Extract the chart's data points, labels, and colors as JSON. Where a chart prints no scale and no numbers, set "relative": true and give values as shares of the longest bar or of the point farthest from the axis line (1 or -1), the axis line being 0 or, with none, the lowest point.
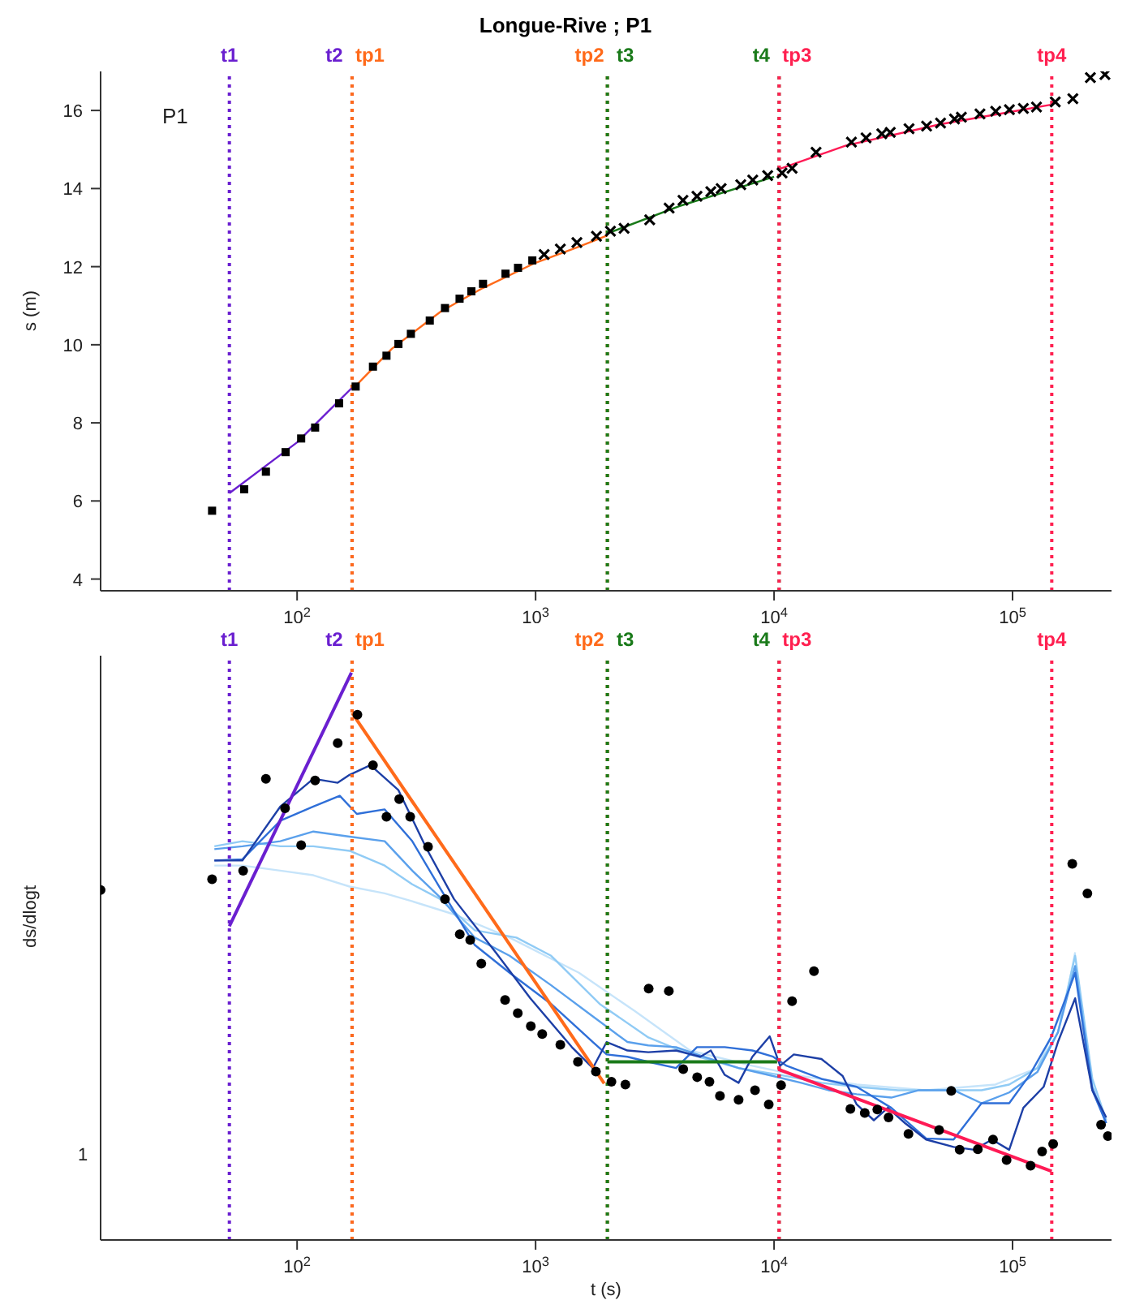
{
  "chart_data": [
    {
      "type": "scatter",
      "title": "Longue-Rive ; P1",
      "ylabel": "s (m)",
      "annotations": [
        "P1"
      ],
      "log": "x",
      "xlim": [
        15,
        260000
      ],
      "ylim": [
        3.7,
        17
      ],
      "xticks": [
        {
          "value": 100,
          "label": "10$^{2}$"
        },
        {
          "value": 1000,
          "label": "10$^{3}$"
        },
        {
          "value": 10000,
          "label": "10$^{4}$"
        },
        {
          "value": 100000,
          "label": "10$^{5}$"
        }
      ],
      "yticks": [
        4,
        6,
        8,
        10,
        12,
        14,
        16
      ],
      "ref_lines": [
        {
          "axis": "x",
          "value": 52,
          "label": "t1",
          "color": "#6a1fd0",
          "line_style": "dotted"
        },
        {
          "axis": "x",
          "value": 170,
          "label": "t2",
          "color": "#6a1fd0",
          "line_style": "dotted"
        },
        {
          "axis": "x",
          "value": 170,
          "label": "tp1",
          "color": "#ff6a1a",
          "line_style": "dotted"
        },
        {
          "axis": "x",
          "value": 2000,
          "label": "tp2",
          "color": "#ff6a1a",
          "line_style": "dotted"
        },
        {
          "axis": "x",
          "value": 2000,
          "label": "t3",
          "color": "#1a7a1a",
          "line_style": "dotted"
        },
        {
          "axis": "x",
          "value": 10500,
          "label": "t4",
          "color": "#1a7a1a",
          "line_style": "dotted"
        },
        {
          "axis": "x",
          "value": 10500,
          "label": "tp3",
          "color": "#ff2050",
          "line_style": "dotted"
        },
        {
          "axis": "x",
          "value": 146000,
          "label": "tp4",
          "color": "#ff2050",
          "line_style": "dotted"
        }
      ],
      "series": [
        {
          "type": "line",
          "color": "#6a1fd0",
          "x": [
            52,
            100,
            170
          ],
          "values": [
            6.2,
            7.5,
            8.9
          ]
        },
        {
          "type": "line",
          "color": "#ff6a1a",
          "x": [
            170,
            250,
            400,
            600,
            1000,
            1500,
            2000
          ],
          "values": [
            8.85,
            9.9,
            10.85,
            11.45,
            12.1,
            12.5,
            12.8
          ]
        },
        {
          "type": "line",
          "color": "#1a7a1a",
          "x": [
            2000,
            4000,
            10000
          ],
          "values": [
            12.85,
            13.55,
            14.3
          ]
        },
        {
          "type": "line",
          "color": "#ff1a55",
          "x": [
            10500,
            20000,
            50000,
            146000
          ],
          "values": [
            14.5,
            15.1,
            15.65,
            16.15
          ]
        },
        {
          "type": "scatter",
          "color": "#000000",
          "marker": "square",
          "x": [
            44,
            60,
            74,
            89.5,
            104,
            119,
            150,
            176,
            208,
            237,
            266,
            300,
            360,
            417,
            480,
            538,
            602,
            748,
            844,
            969
          ],
          "values": [
            5.75,
            6.3,
            6.75,
            7.25,
            7.6,
            7.88,
            8.5,
            8.93,
            9.44,
            9.72,
            10.02,
            10.28,
            10.62,
            10.94,
            11.18,
            11.37,
            11.56,
            11.82,
            11.97,
            12.16
          ]
        },
        {
          "type": "scatter",
          "color": "#000000",
          "marker": "cross",
          "x": [
            1086,
            1270,
            1490,
            1800,
            2060,
            2350,
            3010,
            3630,
            4150,
            4750,
            5430,
            6000,
            7250,
            8140,
            9400,
            10800,
            11900,
            15000,
            21100,
            24300,
            28300,
            30700,
            36800,
            43600,
            49900,
            57100,
            61000,
            73000,
            85000,
            97000,
            111000,
            126000,
            151000,
            179000,
            212000,
            244000
          ],
          "values": [
            12.31,
            12.45,
            12.62,
            12.78,
            12.91,
            12.98,
            13.2,
            13.5,
            13.7,
            13.8,
            13.92,
            14.0,
            14.1,
            14.22,
            14.33,
            14.4,
            14.52,
            14.93,
            15.19,
            15.3,
            15.4,
            15.44,
            15.53,
            15.6,
            15.68,
            15.78,
            15.83,
            15.91,
            15.98,
            16.02,
            16.05,
            16.09,
            16.22,
            16.3,
            16.84,
            16.92
          ]
        }
      ]
    },
    {
      "type": "scatter",
      "xlabel": "t (s)",
      "ylabel": "ds/dlogt",
      "annotations": [
        "1"
      ],
      "relative": true,
      "log": "x",
      "xlim": [
        15,
        260000
      ],
      "xticks": [
        {
          "value": 100,
          "label": "10$^{2}$"
        },
        {
          "value": 1000,
          "label": "10$^{3}$"
        },
        {
          "value": 10000,
          "label": "10$^{4}$"
        },
        {
          "value": 100000,
          "label": "10$^{5}$"
        }
      ],
      "ref_lines": [
        {
          "axis": "x",
          "value": 52,
          "label": "t1",
          "color": "#6a1fd0",
          "line_style": "dotted"
        },
        {
          "axis": "x",
          "value": 170,
          "label": "t2",
          "color": "#6a1fd0",
          "line_style": "dotted"
        },
        {
          "axis": "x",
          "value": 170,
          "label": "tp1",
          "color": "#ff6a1a",
          "line_style": "dotted"
        },
        {
          "axis": "x",
          "value": 2000,
          "label": "tp2",
          "color": "#ff6a1a",
          "line_style": "dotted"
        },
        {
          "axis": "x",
          "value": 2000,
          "label": "t3",
          "color": "#1a7a1a",
          "line_style": "dotted"
        },
        {
          "axis": "x",
          "value": 10500,
          "label": "t4",
          "color": "#1a7a1a",
          "line_style": "dotted"
        },
        {
          "axis": "x",
          "value": 10500,
          "label": "tp3",
          "color": "#ff2050",
          "line_style": "dotted"
        },
        {
          "axis": "x",
          "value": 146000,
          "label": "tp4",
          "color": "#ff2050",
          "line_style": "dotted"
        }
      ],
      "series": [
        {
          "type": "line",
          "color": "#c6e4fa",
          "x": [
            45,
            59,
            85,
            117,
            166,
            233,
            304,
            455,
            778,
            1520,
            2595,
            4440,
            8110,
            13000,
            22200,
            43400,
            84700,
            127000,
            166000,
            183000
          ],
          "values": [
            0.66,
            0.66,
            0.651,
            0.643,
            0.623,
            0.611,
            0.597,
            0.574,
            0.533,
            0.471,
            0.404,
            0.334,
            0.307,
            0.289,
            0.274,
            0.264,
            0.274,
            0.303,
            0.416,
            0.507
          ]
        },
        {
          "type": "line",
          "color": "#90cbf5",
          "x": [
            45,
            59,
            85,
            117,
            166,
            233,
            304,
            398,
            556,
            831,
            1162,
            1858,
            2970,
            4440,
            7100,
            10600,
            15800,
            22200,
            33100,
            49500,
            74100,
            96800,
            127000,
            155000,
            183000,
            216000,
            247000
          ],
          "values": [
            0.694,
            0.703,
            0.694,
            0.694,
            0.686,
            0.66,
            0.627,
            0.601,
            0.546,
            0.533,
            0.501,
            0.416,
            0.357,
            0.327,
            0.303,
            0.291,
            0.277,
            0.27,
            0.264,
            0.264,
            0.264,
            0.274,
            0.303,
            0.366,
            0.501,
            0.284,
            0.211
          ]
        },
        {
          "type": "line",
          "color": "#5aa0ec",
          "x": [
            45,
            59,
            85,
            117,
            166,
            233,
            304,
            398,
            556,
            778,
            1162,
            1738,
            2427,
            2970,
            3880,
            5070,
            7100,
            9910,
            13000,
            16900,
            22200,
            31000,
            40500,
            56600,
            74100,
            96800,
            127000,
            155000,
            183000,
            216000,
            247000
          ],
          "values": [
            0.689,
            0.694,
            0.703,
            0.72,
            0.711,
            0.703,
            0.651,
            0.604,
            0.533,
            0.501,
            0.449,
            0.394,
            0.349,
            0.343,
            0.34,
            0.323,
            0.303,
            0.289,
            0.277,
            0.264,
            0.257,
            0.251,
            0.264,
            0.264,
            0.241,
            0.26,
            0.296,
            0.366,
            0.483,
            0.27,
            0.206
          ]
        },
        {
          "type": "line",
          "color": "#2f6fd8",
          "x": [
            45,
            59,
            85,
            117,
            151,
            178,
            233,
            304,
            398,
            556,
            778,
            1162,
            1738,
            1986,
            2427,
            2970,
            3880,
            4750,
            6210,
            8110,
            9910,
            11300,
            15800,
            22200,
            31000,
            43400,
            56600,
            74100,
            96800,
            118000,
            145000,
            183000,
            216000,
            247000
          ],
          "values": [
            0.669,
            0.671,
            0.739,
            0.764,
            0.783,
            0.751,
            0.759,
            0.703,
            0.62,
            0.52,
            0.471,
            0.416,
            0.349,
            0.327,
            0.323,
            0.314,
            0.303,
            0.34,
            0.34,
            0.334,
            0.323,
            0.307,
            0.284,
            0.27,
            0.233,
            0.179,
            0.177,
            0.241,
            0.241,
            0.291,
            0.357,
            0.471,
            0.264,
            0.206
          ]
        },
        {
          "type": "line",
          "color": "#1d3fa6",
          "x": [
            45,
            59,
            85,
            117,
            148,
            166,
            203,
            266,
            348,
            455,
            680,
            951,
            1419,
            1738,
            1986,
            2427,
            2970,
            3880,
            4910,
            5430,
            6210,
            7100,
            8110,
            9590,
            10600,
            12100,
            15800,
            19400,
            22200,
            26200,
            30000,
            35400,
            43400,
            56600,
            69200,
            81900,
            96800,
            111000,
            135000,
            155000,
            183000,
            216000,
            247000
          ],
          "values": [
            0.669,
            0.669,
            0.764,
            0.813,
            0.806,
            0.82,
            0.837,
            0.793,
            0.691,
            0.601,
            0.507,
            0.426,
            0.34,
            0.303,
            0.349,
            0.334,
            0.331,
            0.334,
            0.323,
            0.334,
            0.291,
            0.277,
            0.323,
            0.359,
            0.307,
            0.327,
            0.319,
            0.289,
            0.239,
            0.211,
            0.233,
            0.206,
            0.177,
            0.164,
            0.159,
            0.177,
            0.159,
            0.233,
            0.27,
            0.349,
            0.426,
            0.264,
            0.216
          ]
        },
        {
          "type": "line",
          "color": "#6a1fd0",
          "x": [
            52,
            169
          ],
          "values": [
            0.553,
            1
          ]
        },
        {
          "type": "line",
          "color": "#ff6a1a",
          "x": [
            170,
            1940
          ],
          "values": [
            0.929,
            0.276
          ]
        },
        {
          "type": "line",
          "color": "#1a7a1a",
          "x": [
            2000,
            10300
          ],
          "values": [
            0.314,
            0.314
          ]
        },
        {
          "type": "line",
          "color": "#ff1a55",
          "x": [
            10400,
            146000
          ],
          "values": [
            0.301,
            0.121
          ]
        },
        {
          "type": "scatter",
          "color": "#000000",
          "marker": "circle",
          "x": [
            15,
            44,
            59.4,
            74,
            89,
            104,
            119,
            148,
            179,
            208,
            237,
            268,
            298,
            354,
            417,
            481,
            532,
            592,
            745,
            842,
            955,
            1066,
            1270,
            1505,
            1790,
            2080,
            2380,
            2980,
            3620,
            4160,
            4760,
            5360,
            5930,
            7100,
            8320,
            9500,
            10700,
            11900,
            14700,
            20900,
            24000,
            27100,
            30200,
            36600,
            49200,
            55300,
            60000,
            71500,
            82800,
            94400,
            119000,
            133000,
            148000,
            178000,
            206000,
            235000,
            251000
          ],
          "values": [
            0.617,
            0.636,
            0.651,
            0.813,
            0.761,
            0.696,
            0.81,
            0.876,
            0.926,
            0.837,
            0.746,
            0.777,
            0.746,
            0.693,
            0.601,
            0.539,
            0.529,
            0.487,
            0.423,
            0.4,
            0.377,
            0.363,
            0.344,
            0.314,
            0.297,
            0.279,
            0.274,
            0.443,
            0.439,
            0.301,
            0.287,
            0.279,
            0.254,
            0.247,
            0.264,
            0.239,
            0.273,
            0.421,
            0.474,
            0.231,
            0.224,
            0.23,
            0.216,
            0.187,
            0.194,
            0.263,
            0.159,
            0.16,
            0.177,
            0.141,
            0.131,
            0.156,
            0.169,
            0.663,
            0.611,
            0.203,
            0.183
          ]
        }
      ]
    }
  ]
}
